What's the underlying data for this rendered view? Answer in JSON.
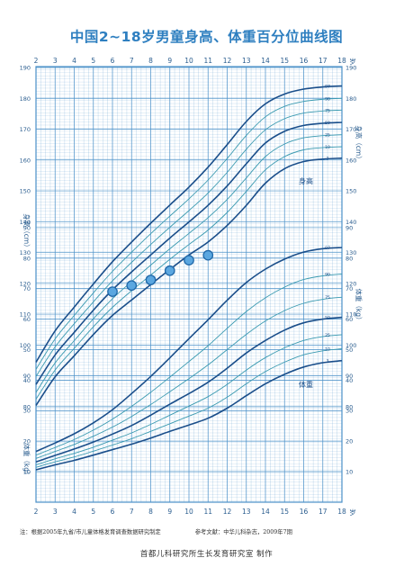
{
  "title": "中国2~18岁男童身高、体重百分位曲线图",
  "footnote_left": "注：根据2005年九省/市儿童体格发育调查数据研究制定",
  "footnote_right": "参考文献：中华儿科杂志，2009年7期",
  "credit": "首都儿科研究所生长发育研究室  制作",
  "colors": {
    "accent": "#2e7fc0",
    "grid": "#4a90c8",
    "curve_main": "#1a4e8a",
    "curve_light": "#3a9ab0",
    "marker": "#5ba7e0"
  },
  "chart_data": {
    "type": "line",
    "x_unit": "岁",
    "x_ticks": [
      2,
      3,
      4,
      5,
      6,
      7,
      8,
      9,
      10,
      11,
      12,
      13,
      14,
      15,
      16,
      17,
      18
    ],
    "xlim": [
      2,
      18
    ],
    "grid": true,
    "height_chart": {
      "label": "身高",
      "ylabel": "身高（cm）",
      "ylim": [
        75,
        190
      ],
      "y_ticks": [
        80,
        90,
        100,
        110,
        120,
        130,
        140,
        150,
        160,
        170,
        180,
        190
      ],
      "percentiles": [
        "3",
        "10",
        "25",
        "50",
        "75",
        "90",
        "97"
      ],
      "x": [
        2,
        3,
        4,
        5,
        6,
        7,
        8,
        9,
        10,
        11,
        12,
        13,
        14,
        15,
        16,
        17,
        18
      ],
      "series": [
        {
          "name": "97",
          "values": [
            94.4,
            104.6,
            112.3,
            119.8,
            127.0,
            133.4,
            139.5,
            145.4,
            151.2,
            157.7,
            165.0,
            172.5,
            178.2,
            181.4,
            183.0,
            183.7,
            184.0
          ]
        },
        {
          "name": "90",
          "values": [
            92.1,
            102.0,
            109.6,
            116.9,
            123.9,
            130.1,
            136.1,
            141.8,
            147.4,
            153.5,
            160.5,
            168.0,
            174.0,
            177.4,
            179.0,
            179.7,
            180.0
          ]
        },
        {
          "name": "75",
          "values": [
            89.8,
            99.4,
            106.9,
            114.0,
            120.8,
            126.8,
            132.6,
            138.2,
            143.6,
            149.3,
            156.0,
            163.5,
            169.8,
            173.4,
            175.2,
            175.9,
            176.2
          ]
        },
        {
          "name": "50",
          "values": [
            87.2,
            96.8,
            104.1,
            111.3,
            117.9,
            123.7,
            129.2,
            134.7,
            139.9,
            145.3,
            151.6,
            158.8,
            165.5,
            169.3,
            171.2,
            171.9,
            172.2
          ]
        },
        {
          "name": "25",
          "values": [
            84.6,
            94.2,
            101.4,
            108.5,
            115.0,
            120.6,
            125.9,
            131.2,
            136.2,
            141.3,
            147.2,
            154.2,
            161.1,
            165.2,
            167.2,
            167.9,
            168.2
          ]
        },
        {
          "name": "10",
          "values": [
            82.4,
            91.9,
            98.9,
            105.9,
            112.2,
            117.6,
            122.7,
            127.8,
            132.6,
            137.3,
            143.0,
            149.8,
            156.8,
            161.1,
            163.3,
            164.0,
            164.3
          ]
        },
        {
          "name": "3",
          "values": [
            80.4,
            89.7,
            96.5,
            103.4,
            109.6,
            114.6,
            119.6,
            124.5,
            129.2,
            133.4,
            138.8,
            145.3,
            152.5,
            157.2,
            159.5,
            160.3,
            160.6
          ]
        }
      ]
    },
    "weight_chart": {
      "label": "体重",
      "ylabel": "体重（kg）",
      "ylim": [
        0,
        95
      ],
      "y_ticks": [
        10,
        20,
        30,
        40,
        50,
        60,
        70,
        80,
        90
      ],
      "percentiles": [
        "3",
        "10",
        "25",
        "50",
        "75",
        "90",
        "97"
      ],
      "x": [
        2,
        3,
        4,
        5,
        6,
        7,
        8,
        9,
        10,
        11,
        12,
        13,
        14,
        15,
        16,
        17,
        18
      ],
      "series": [
        {
          "name": "97",
          "values": [
            16.6,
            19.4,
            22.4,
            26.0,
            30.3,
            35.6,
            41.2,
            47.3,
            53.6,
            59.8,
            66.2,
            72.0,
            76.4,
            79.7,
            82.0,
            83.1,
            83.5
          ]
        },
        {
          "name": "90",
          "values": [
            15.4,
            17.9,
            20.5,
            23.6,
            27.2,
            31.4,
            36.0,
            41.0,
            46.1,
            51.3,
            57.0,
            62.5,
            67.0,
            70.5,
            73.0,
            74.2,
            74.8
          ]
        },
        {
          "name": "75",
          "values": [
            14.3,
            16.6,
            18.9,
            21.6,
            24.6,
            28.1,
            32.0,
            36.2,
            40.5,
            45.0,
            50.0,
            55.0,
            59.4,
            62.8,
            65.2,
            66.5,
            67.2
          ]
        },
        {
          "name": "50",
          "values": [
            13.2,
            15.3,
            17.4,
            19.7,
            22.3,
            25.1,
            28.5,
            32.1,
            35.6,
            39.3,
            43.9,
            48.9,
            53.0,
            56.4,
            58.8,
            60.0,
            60.6
          ]
        },
        {
          "name": "25",
          "values": [
            12.2,
            14.2,
            16.0,
            18.0,
            20.3,
            22.7,
            25.5,
            28.5,
            31.5,
            34.6,
            38.6,
            43.3,
            47.4,
            50.6,
            53.0,
            54.3,
            54.9
          ]
        },
        {
          "name": "10",
          "values": [
            11.4,
            13.2,
            14.8,
            16.7,
            18.7,
            20.8,
            23.2,
            25.7,
            28.2,
            30.8,
            34.4,
            38.8,
            42.8,
            45.9,
            48.3,
            49.6,
            50.3
          ]
        },
        {
          "name": "3",
          "values": [
            10.6,
            12.2,
            13.7,
            15.4,
            17.2,
            19.0,
            21.0,
            23.2,
            25.3,
            27.5,
            30.8,
            34.9,
            38.8,
            41.9,
            44.3,
            45.7,
            46.4
          ]
        }
      ]
    },
    "plotted_points": {
      "series": "身高",
      "x": [
        6.0,
        7.0,
        8.0,
        9.0,
        10.0,
        11.0
      ],
      "y": [
        117.3,
        119.3,
        121.1,
        124.1,
        127.5,
        129.1
      ]
    }
  }
}
